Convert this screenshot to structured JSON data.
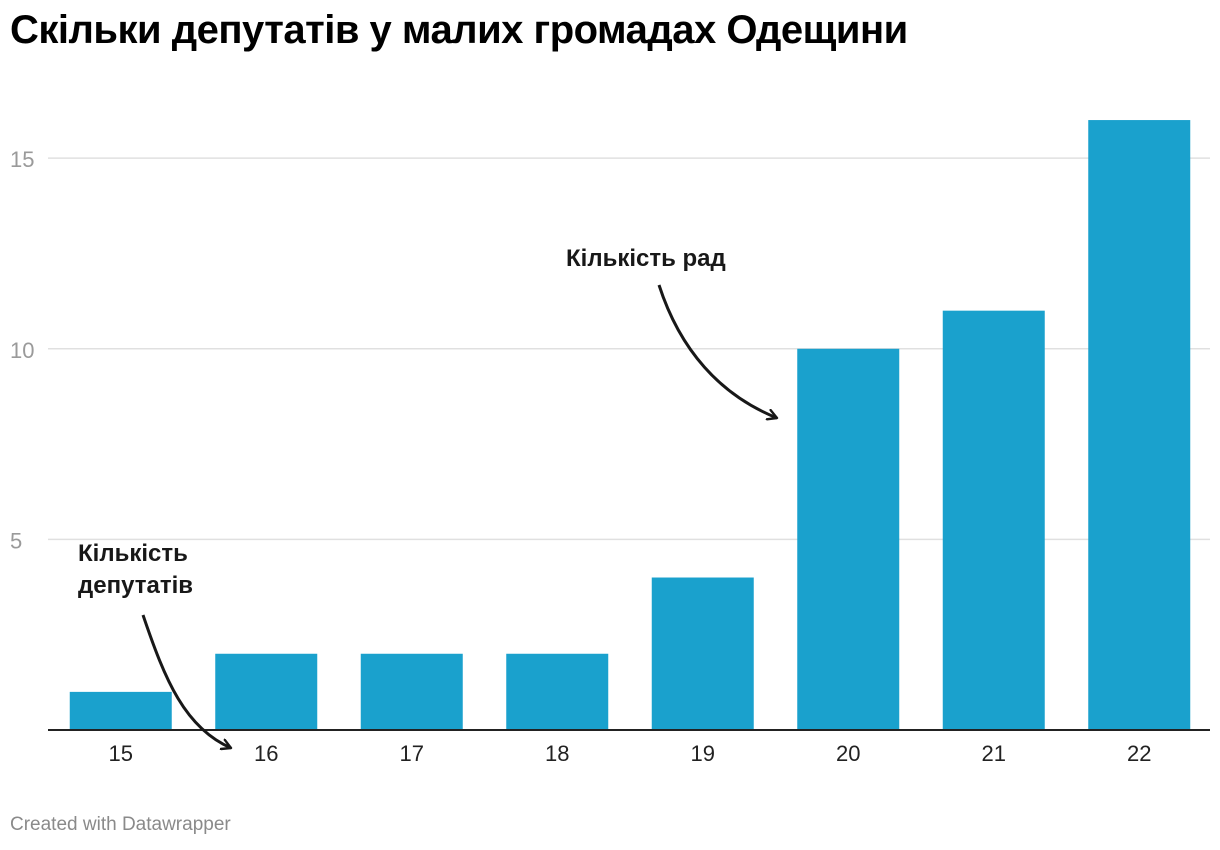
{
  "chart_data": {
    "type": "bar",
    "title": "Скільки депутатів у малих громадах Одещини",
    "categories": [
      "15",
      "16",
      "17",
      "18",
      "19",
      "20",
      "21",
      "22"
    ],
    "values": [
      1,
      2,
      2,
      2,
      4,
      10,
      11,
      16
    ],
    "ylim": [
      0,
      16.5
    ],
    "yticks": [
      5,
      10,
      15
    ],
    "xlabel": "",
    "ylabel": "",
    "grid": true,
    "bar_color": "#1aa1cd",
    "annotations": [
      {
        "text_lines": [
          "Кількість",
          "депутатів"
        ],
        "target": "categories"
      },
      {
        "text_lines": [
          "Кількість рад"
        ],
        "target": "values"
      }
    ]
  },
  "colors": {
    "bar": "#1aa1cd",
    "gridline": "#e0e0e0",
    "axis": "#222222",
    "tick_label": "#9a9a9a",
    "annotation": "#181818"
  },
  "footer": "Created with Datawrapper"
}
